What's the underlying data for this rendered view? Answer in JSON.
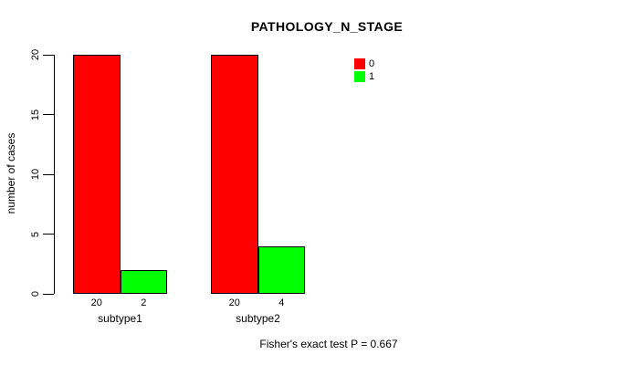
{
  "chart_data": {
    "type": "bar",
    "title": "PATHOLOGY_N_STAGE",
    "ylabel": "number of cases",
    "xlabel": "",
    "ylim": [
      0,
      20
    ],
    "yticks": [
      0,
      5,
      10,
      15,
      20
    ],
    "categories": [
      "subtype1",
      "subtype2"
    ],
    "series": [
      {
        "name": "0",
        "color": "#ff0000",
        "values": [
          20,
          20
        ]
      },
      {
        "name": "1",
        "color": "#00ff00",
        "values": [
          2,
          4
        ]
      }
    ],
    "bar_count_labels": [
      [
        "20",
        "2"
      ],
      [
        "20",
        "4"
      ]
    ],
    "legend_position": "top-right",
    "grid": false,
    "footer": "Fisher's exact test P = 0.667"
  },
  "colors": {
    "series_0": "#ff0000",
    "series_1": "#00ff00",
    "axis": "#000000",
    "background": "#ffffff"
  }
}
